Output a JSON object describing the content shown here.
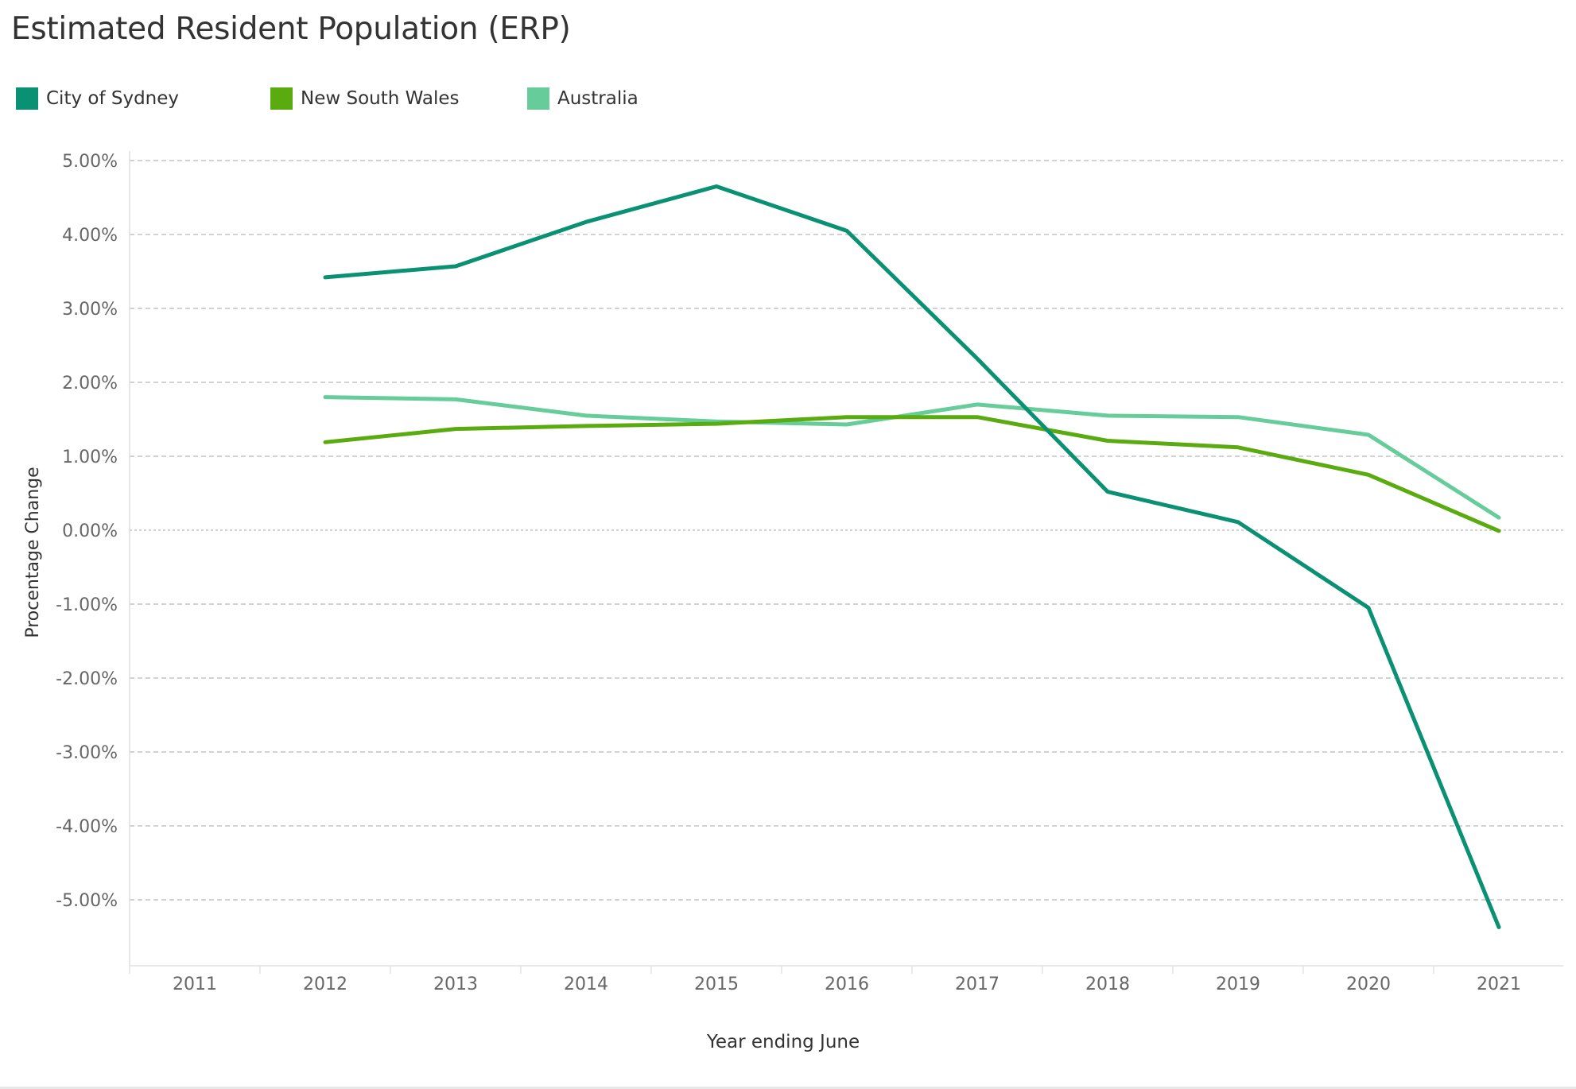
{
  "title": "Estimated Resident Population (ERP)",
  "colors": {
    "city_of_sydney": "#0a9072",
    "new_south_wales": "#5aab0f",
    "australia": "#66cc99",
    "grid": "#c4c4c4",
    "tick_text": "#666666",
    "axis_title": "#333333"
  },
  "chart_data": {
    "type": "line",
    "title": "Estimated Resident Population (ERP)",
    "xlabel": "Year ending June",
    "ylabel": "Procentage Change",
    "x": [
      "2011",
      "2012",
      "2013",
      "2014",
      "2015",
      "2016",
      "2017",
      "2018",
      "2019",
      "2020",
      "2021"
    ],
    "ylim": [
      -5.8,
      5.4
    ],
    "yticks": [
      5,
      4,
      3,
      2,
      1,
      0,
      -1,
      -2,
      -3,
      -4,
      -5
    ],
    "ytick_labels": [
      "5.00%",
      "4.00%",
      "3.00%",
      "2.00%",
      "1.00%",
      "0.00%",
      "-1.00%",
      "-2.00%",
      "-3.00%",
      "-4.00%",
      "-5.00%"
    ],
    "grid": true,
    "legend_position": "top-left",
    "series": [
      {
        "name": "City of Sydney",
        "color": "#0a9072",
        "values": [
          null,
          3.42,
          3.57,
          4.17,
          4.65,
          4.05,
          2.32,
          0.52,
          0.11,
          -1.05,
          -5.37
        ]
      },
      {
        "name": "New South Wales",
        "color": "#5aab0f",
        "values": [
          null,
          1.19,
          1.37,
          1.41,
          1.44,
          1.53,
          1.53,
          1.21,
          1.12,
          0.75,
          -0.01
        ]
      },
      {
        "name": "Australia",
        "color": "#66cc99",
        "values": [
          null,
          1.8,
          1.77,
          1.55,
          1.47,
          1.43,
          1.7,
          1.55,
          1.53,
          1.29,
          0.17
        ]
      }
    ]
  }
}
